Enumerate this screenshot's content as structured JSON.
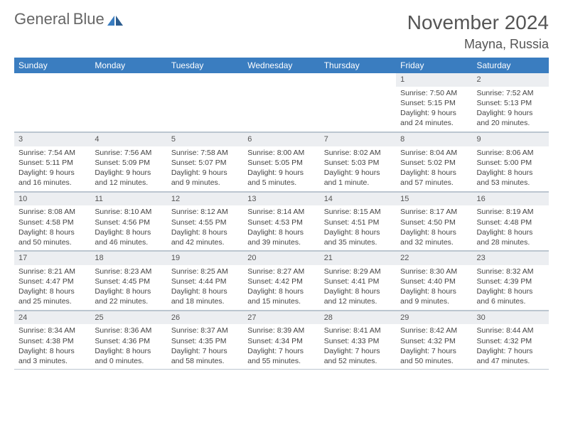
{
  "brand": {
    "name1": "General",
    "name2": "Blue"
  },
  "title": "November 2024",
  "location": "Mayna, Russia",
  "colors": {
    "header_bg": "#3a7dc0",
    "header_fg": "#ffffff",
    "daynum_bg": "#eceef1",
    "border": "#bcc6d0",
    "text": "#444444"
  },
  "weekdays": [
    "Sunday",
    "Monday",
    "Tuesday",
    "Wednesday",
    "Thursday",
    "Friday",
    "Saturday"
  ],
  "weeks": [
    [
      null,
      null,
      null,
      null,
      null,
      {
        "n": "1",
        "sr": "Sunrise: 7:50 AM",
        "ss": "Sunset: 5:15 PM",
        "d1": "Daylight: 9 hours",
        "d2": "and 24 minutes."
      },
      {
        "n": "2",
        "sr": "Sunrise: 7:52 AM",
        "ss": "Sunset: 5:13 PM",
        "d1": "Daylight: 9 hours",
        "d2": "and 20 minutes."
      }
    ],
    [
      {
        "n": "3",
        "sr": "Sunrise: 7:54 AM",
        "ss": "Sunset: 5:11 PM",
        "d1": "Daylight: 9 hours",
        "d2": "and 16 minutes."
      },
      {
        "n": "4",
        "sr": "Sunrise: 7:56 AM",
        "ss": "Sunset: 5:09 PM",
        "d1": "Daylight: 9 hours",
        "d2": "and 12 minutes."
      },
      {
        "n": "5",
        "sr": "Sunrise: 7:58 AM",
        "ss": "Sunset: 5:07 PM",
        "d1": "Daylight: 9 hours",
        "d2": "and 9 minutes."
      },
      {
        "n": "6",
        "sr": "Sunrise: 8:00 AM",
        "ss": "Sunset: 5:05 PM",
        "d1": "Daylight: 9 hours",
        "d2": "and 5 minutes."
      },
      {
        "n": "7",
        "sr": "Sunrise: 8:02 AM",
        "ss": "Sunset: 5:03 PM",
        "d1": "Daylight: 9 hours",
        "d2": "and 1 minute."
      },
      {
        "n": "8",
        "sr": "Sunrise: 8:04 AM",
        "ss": "Sunset: 5:02 PM",
        "d1": "Daylight: 8 hours",
        "d2": "and 57 minutes."
      },
      {
        "n": "9",
        "sr": "Sunrise: 8:06 AM",
        "ss": "Sunset: 5:00 PM",
        "d1": "Daylight: 8 hours",
        "d2": "and 53 minutes."
      }
    ],
    [
      {
        "n": "10",
        "sr": "Sunrise: 8:08 AM",
        "ss": "Sunset: 4:58 PM",
        "d1": "Daylight: 8 hours",
        "d2": "and 50 minutes."
      },
      {
        "n": "11",
        "sr": "Sunrise: 8:10 AM",
        "ss": "Sunset: 4:56 PM",
        "d1": "Daylight: 8 hours",
        "d2": "and 46 minutes."
      },
      {
        "n": "12",
        "sr": "Sunrise: 8:12 AM",
        "ss": "Sunset: 4:55 PM",
        "d1": "Daylight: 8 hours",
        "d2": "and 42 minutes."
      },
      {
        "n": "13",
        "sr": "Sunrise: 8:14 AM",
        "ss": "Sunset: 4:53 PM",
        "d1": "Daylight: 8 hours",
        "d2": "and 39 minutes."
      },
      {
        "n": "14",
        "sr": "Sunrise: 8:15 AM",
        "ss": "Sunset: 4:51 PM",
        "d1": "Daylight: 8 hours",
        "d2": "and 35 minutes."
      },
      {
        "n": "15",
        "sr": "Sunrise: 8:17 AM",
        "ss": "Sunset: 4:50 PM",
        "d1": "Daylight: 8 hours",
        "d2": "and 32 minutes."
      },
      {
        "n": "16",
        "sr": "Sunrise: 8:19 AM",
        "ss": "Sunset: 4:48 PM",
        "d1": "Daylight: 8 hours",
        "d2": "and 28 minutes."
      }
    ],
    [
      {
        "n": "17",
        "sr": "Sunrise: 8:21 AM",
        "ss": "Sunset: 4:47 PM",
        "d1": "Daylight: 8 hours",
        "d2": "and 25 minutes."
      },
      {
        "n": "18",
        "sr": "Sunrise: 8:23 AM",
        "ss": "Sunset: 4:45 PM",
        "d1": "Daylight: 8 hours",
        "d2": "and 22 minutes."
      },
      {
        "n": "19",
        "sr": "Sunrise: 8:25 AM",
        "ss": "Sunset: 4:44 PM",
        "d1": "Daylight: 8 hours",
        "d2": "and 18 minutes."
      },
      {
        "n": "20",
        "sr": "Sunrise: 8:27 AM",
        "ss": "Sunset: 4:42 PM",
        "d1": "Daylight: 8 hours",
        "d2": "and 15 minutes."
      },
      {
        "n": "21",
        "sr": "Sunrise: 8:29 AM",
        "ss": "Sunset: 4:41 PM",
        "d1": "Daylight: 8 hours",
        "d2": "and 12 minutes."
      },
      {
        "n": "22",
        "sr": "Sunrise: 8:30 AM",
        "ss": "Sunset: 4:40 PM",
        "d1": "Daylight: 8 hours",
        "d2": "and 9 minutes."
      },
      {
        "n": "23",
        "sr": "Sunrise: 8:32 AM",
        "ss": "Sunset: 4:39 PM",
        "d1": "Daylight: 8 hours",
        "d2": "and 6 minutes."
      }
    ],
    [
      {
        "n": "24",
        "sr": "Sunrise: 8:34 AM",
        "ss": "Sunset: 4:38 PM",
        "d1": "Daylight: 8 hours",
        "d2": "and 3 minutes."
      },
      {
        "n": "25",
        "sr": "Sunrise: 8:36 AM",
        "ss": "Sunset: 4:36 PM",
        "d1": "Daylight: 8 hours",
        "d2": "and 0 minutes."
      },
      {
        "n": "26",
        "sr": "Sunrise: 8:37 AM",
        "ss": "Sunset: 4:35 PM",
        "d1": "Daylight: 7 hours",
        "d2": "and 58 minutes."
      },
      {
        "n": "27",
        "sr": "Sunrise: 8:39 AM",
        "ss": "Sunset: 4:34 PM",
        "d1": "Daylight: 7 hours",
        "d2": "and 55 minutes."
      },
      {
        "n": "28",
        "sr": "Sunrise: 8:41 AM",
        "ss": "Sunset: 4:33 PM",
        "d1": "Daylight: 7 hours",
        "d2": "and 52 minutes."
      },
      {
        "n": "29",
        "sr": "Sunrise: 8:42 AM",
        "ss": "Sunset: 4:32 PM",
        "d1": "Daylight: 7 hours",
        "d2": "and 50 minutes."
      },
      {
        "n": "30",
        "sr": "Sunrise: 8:44 AM",
        "ss": "Sunset: 4:32 PM",
        "d1": "Daylight: 7 hours",
        "d2": "and 47 minutes."
      }
    ]
  ]
}
